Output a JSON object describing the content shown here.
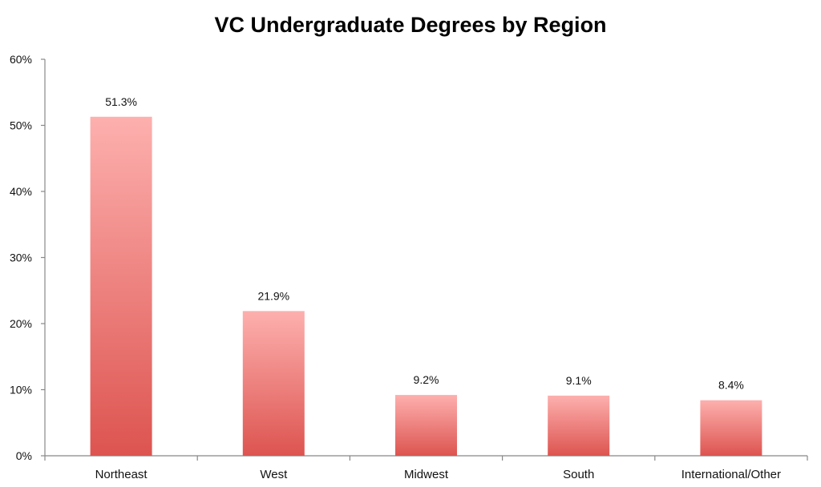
{
  "chart_data": {
    "type": "bar",
    "title": "VC Undergraduate Degrees by Region",
    "xlabel": "",
    "ylabel": "",
    "categories": [
      "Northeast",
      "West",
      "Midwest",
      "South",
      "International/Other"
    ],
    "values": [
      51.3,
      21.9,
      9.2,
      9.1,
      8.4
    ],
    "value_labels": [
      "51.3%",
      "21.9%",
      "9.2%",
      "9.1%",
      "8.4%"
    ],
    "ylim": [
      0,
      60
    ],
    "yticks": [
      0,
      10,
      20,
      30,
      40,
      50,
      60
    ],
    "ytick_labels": [
      "0%",
      "10%",
      "20%",
      "30%",
      "40%",
      "50%",
      "60%"
    ],
    "grid": false,
    "legend": "none",
    "colors": {
      "bar_top": "#fdb0ae",
      "bar_bottom": "#dd5450",
      "axis": "#888888",
      "text": "#111111"
    }
  }
}
